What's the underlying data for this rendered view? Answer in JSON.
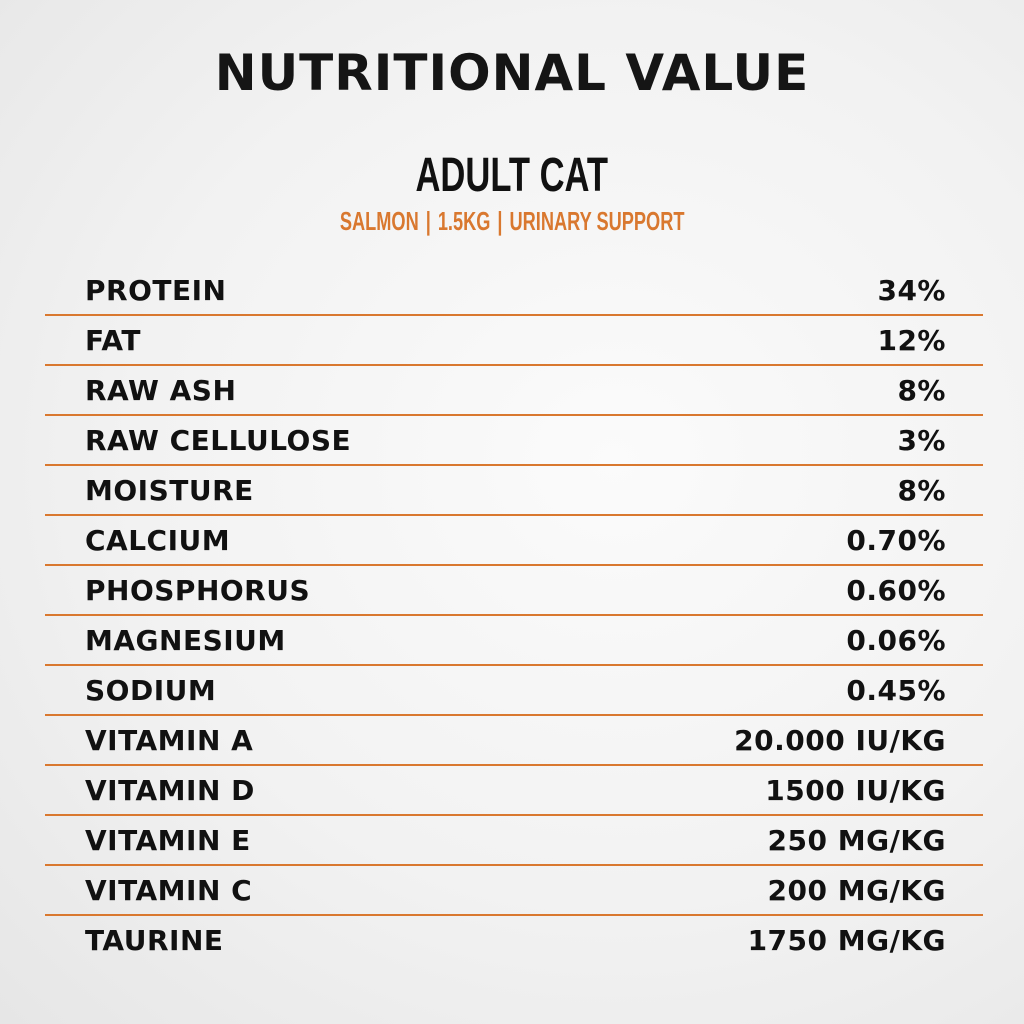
{
  "title": "NUTRITIONAL VALUE",
  "product": {
    "name": "ADULT CAT",
    "tags": [
      "SALMON",
      "1.5KG",
      "URINARY SUPPORT"
    ],
    "accent_color": "#d9782f"
  },
  "rows": [
    {
      "label": "PROTEIN",
      "value": "34%"
    },
    {
      "label": "FAT",
      "value": "12%"
    },
    {
      "label": "RAW ASH",
      "value": "8%"
    },
    {
      "label": "RAW CELLULOSE",
      "value": "3%"
    },
    {
      "label": "MOISTURE",
      "value": "8%"
    },
    {
      "label": "CALCIUM",
      "value": "0.70%"
    },
    {
      "label": "PHOSPHORUS",
      "value": "0.60%"
    },
    {
      "label": "MAGNESIUM",
      "value": "0.06%"
    },
    {
      "label": "SODIUM",
      "value": "0.45%"
    },
    {
      "label": "VITAMIN A",
      "value": "20.000 IU/KG"
    },
    {
      "label": "VITAMIN D",
      "value": "1500 IU/KG"
    },
    {
      "label": "VITAMIN E",
      "value": "250 MG/KG"
    },
    {
      "label": "VITAMIN C",
      "value": "200 MG/KG"
    },
    {
      "label": "TAURINE",
      "value": "1750 MG/KG"
    }
  ]
}
